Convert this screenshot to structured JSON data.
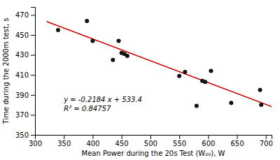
{
  "chart_data": {
    "type": "scatter",
    "xlabel": "Mean Power during the 20s Test (W₂₀), W",
    "ylabel": "Time during the 2000m test, s",
    "xlim": [
      300,
      710
    ],
    "ylim": [
      350,
      478
    ],
    "xticks": [
      300,
      350,
      400,
      450,
      500,
      550,
      600,
      650,
      700
    ],
    "yticks": [
      350,
      370,
      390,
      410,
      430,
      450,
      470
    ],
    "grid": false,
    "series": [
      {
        "type": "scatter",
        "color": "#111111",
        "marker": "circle",
        "x": [
          340,
          390,
          400,
          435,
          445,
          450,
          455,
          460,
          550,
          560,
          580,
          590,
          595,
          605,
          640,
          690,
          692
        ],
        "values": [
          455,
          464,
          444,
          425,
          444,
          432,
          431,
          429,
          409,
          413,
          379,
          404,
          403,
          414,
          382,
          395,
          380
        ]
      },
      {
        "type": "line",
        "color": "#cc0000",
        "line_style": "solid",
        "x": [
          320,
          710
        ],
        "values": [
          463.512,
          378.336
        ]
      }
    ],
    "annotations": [
      {
        "text": [
          "y = -0.2184 x + 533.4",
          "R² = 0.84757"
        ],
        "x": 350,
        "y": 389
      }
    ]
  }
}
